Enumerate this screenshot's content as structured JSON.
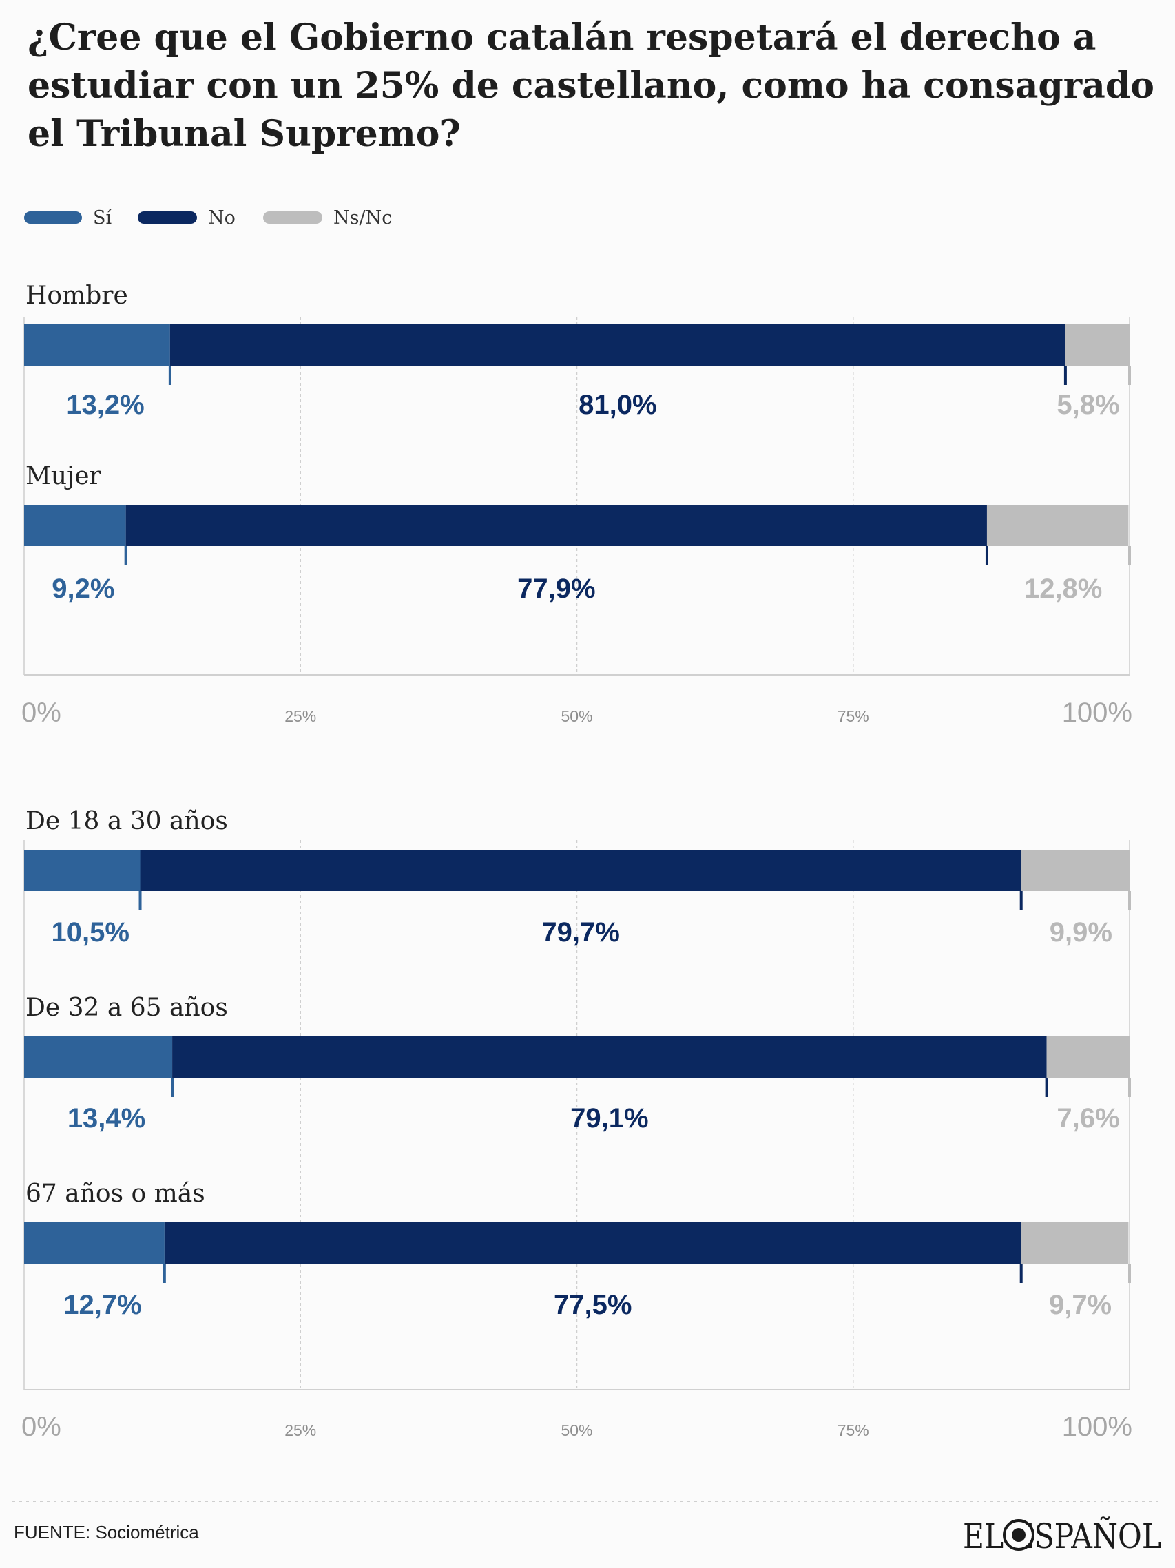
{
  "title_lines": [
    "¿Cree que el Gobierno catalán respetará el derecho a",
    "estudiar con un 25% de castellano, como ha consagrado",
    "el Tribunal Supremo?"
  ],
  "legend": [
    {
      "label": "Sí",
      "color": "#2e6299"
    },
    {
      "label": "No",
      "color": "#0b2860"
    },
    {
      "label": "Ns/Nc",
      "color": "#bdbdbd"
    }
  ],
  "source": "FUENTE: Sociométrica",
  "logo_text": "EL ESPAÑOL",
  "chart_data": [
    {
      "type": "bar",
      "orientation": "horizontal",
      "stacked": true,
      "categories": [
        "Hombre",
        "Mujer"
      ],
      "series": [
        {
          "name": "Sí",
          "values": [
            13.2,
            9.2
          ],
          "labels": [
            "13,2%",
            "9,2%"
          ],
          "color": "#2e6299"
        },
        {
          "name": "No",
          "values": [
            81.0,
            77.9
          ],
          "labels": [
            "81,0%",
            "77,9%"
          ],
          "color": "#0b2860"
        },
        {
          "name": "Ns/Nc",
          "values": [
            5.8,
            12.8
          ],
          "labels": [
            "5,8%",
            "12,8%"
          ],
          "color": "#bdbdbd"
        }
      ],
      "xlim": [
        0,
        100
      ],
      "ticks": [
        "0%",
        "25%",
        "50%",
        "75%",
        "100%"
      ],
      "grid": true
    },
    {
      "type": "bar",
      "orientation": "horizontal",
      "stacked": true,
      "categories": [
        "De 18 a 30 años",
        "De 32 a 65 años",
        "67 años o más"
      ],
      "series": [
        {
          "name": "Sí",
          "values": [
            10.5,
            13.4,
            12.7
          ],
          "labels": [
            "10,5%",
            "13,4%",
            "12,7%"
          ],
          "color": "#2e6299"
        },
        {
          "name": "No",
          "values": [
            79.7,
            79.1,
            77.5
          ],
          "labels": [
            "79,7%",
            "79,1%",
            "77,5%"
          ],
          "color": "#0b2860"
        },
        {
          "name": "Ns/Nc",
          "values": [
            9.9,
            7.6,
            9.7
          ],
          "labels": [
            "9,9%",
            "7,6%",
            "9,7%"
          ],
          "color": "#bdbdbd"
        }
      ],
      "xlim": [
        0,
        100
      ],
      "ticks": [
        "0%",
        "25%",
        "50%",
        "75%",
        "100%"
      ],
      "grid": true
    }
  ]
}
